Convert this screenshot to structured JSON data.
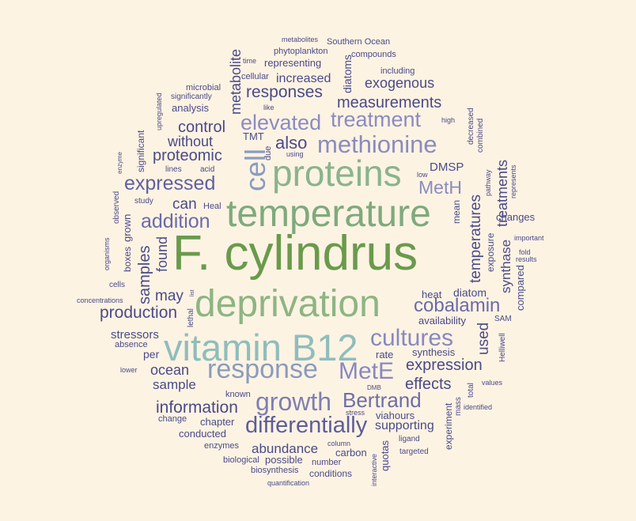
{
  "words": [
    {
      "id": "w1",
      "text": "F. cylindrus",
      "color": "#6a9a4c"
    },
    {
      "id": "w2",
      "text": "deprivation",
      "color": "#8db582"
    },
    {
      "id": "w3",
      "text": "temperature",
      "color": "#7faa7c"
    },
    {
      "id": "w4",
      "text": "vitamin B12",
      "color": "#8fbdbb"
    },
    {
      "id": "w5",
      "text": "proteins",
      "color": "#8ab48c"
    },
    {
      "id": "w6",
      "text": "methionine",
      "color": "#8a8cbd"
    },
    {
      "id": "w7",
      "text": "response",
      "color": "#8a9cbd"
    },
    {
      "id": "w8",
      "text": "growth",
      "color": "#7f7fb1"
    },
    {
      "id": "w9",
      "text": "cultures",
      "color": "#8888c0"
    },
    {
      "id": "w10",
      "text": "MetE",
      "color": "#8888c0"
    },
    {
      "id": "w11",
      "text": "Bertrand",
      "color": "#6e6ea8"
    },
    {
      "id": "w12",
      "text": "differentially",
      "color": "#5d5d99"
    },
    {
      "id": "w13",
      "text": "elevated",
      "color": "#8a8cc0"
    },
    {
      "id": "w14",
      "text": "treatment",
      "color": "#8a8cc0"
    },
    {
      "id": "w15",
      "text": "cell",
      "color": "#8a9cc0"
    },
    {
      "id": "w16",
      "text": "expressed",
      "color": "#6060a0"
    },
    {
      "id": "w17",
      "text": "addition",
      "color": "#6a6aaa"
    },
    {
      "id": "w18",
      "text": "cobalamin",
      "color": "#6a6aaa"
    },
    {
      "id": "w19",
      "text": "MetH",
      "color": "#8a8cc0"
    },
    {
      "id": "w20",
      "text": "information",
      "color": "#4a4a88"
    },
    {
      "id": "w21",
      "text": "production",
      "color": "#4a4a88"
    },
    {
      "id": "w22",
      "text": "expression",
      "color": "#4a4a88"
    },
    {
      "id": "w23",
      "text": "effects",
      "color": "#4a4a88"
    },
    {
      "id": "w24",
      "text": "measurements",
      "color": "#4a4a88"
    },
    {
      "id": "w25",
      "text": "responses",
      "color": "#4a4a88"
    },
    {
      "id": "w26",
      "text": "also",
      "color": "#4a4a88"
    },
    {
      "id": "w27",
      "text": "control",
      "color": "#4a4a88"
    },
    {
      "id": "w28",
      "text": "proteomic",
      "color": "#4a4a88"
    },
    {
      "id": "w29",
      "text": "without",
      "color": "#4a4a88"
    },
    {
      "id": "w30",
      "text": "can",
      "color": "#4a4a88"
    },
    {
      "id": "w31",
      "text": "may",
      "color": "#4a4a88"
    },
    {
      "id": "w32",
      "text": "ocean",
      "color": "#4a4a88"
    },
    {
      "id": "w33",
      "text": "sample",
      "color": "#4a4a88"
    },
    {
      "id": "w34",
      "text": "abundance",
      "color": "#4a4a88"
    },
    {
      "id": "w35",
      "text": "supporting",
      "color": "#4a4a88"
    },
    {
      "id": "w36",
      "text": "exogenous",
      "color": "#4a4a88"
    },
    {
      "id": "w37",
      "text": "increased",
      "color": "#4a4a88"
    },
    {
      "id": "w38",
      "text": "DMSP",
      "color": "#4a4a88"
    },
    {
      "id": "w39",
      "text": "temperatures",
      "color": "#4a4a88"
    },
    {
      "id": "w40",
      "text": "treatments",
      "color": "#4a4a88"
    },
    {
      "id": "w41",
      "text": "synthase",
      "color": "#4a4a88"
    },
    {
      "id": "w42",
      "text": "used",
      "color": "#4a4a88"
    },
    {
      "id": "w43",
      "text": "samples",
      "color": "#4a4a88"
    },
    {
      "id": "w44",
      "text": "found",
      "color": "#4a4a88"
    },
    {
      "id": "w45",
      "text": "metabolite",
      "color": "#4a4a88"
    },
    {
      "id": "w46",
      "text": "stressors",
      "color": "#4a4a88"
    },
    {
      "id": "w47",
      "text": "conducted",
      "color": "#4a4a88"
    },
    {
      "id": "w48",
      "text": "diatom",
      "color": "#4a4a88"
    },
    {
      "id": "w49",
      "text": "heat",
      "color": "#4a4a88"
    },
    {
      "id": "w50",
      "text": "availability",
      "color": "#4a4a88"
    },
    {
      "id": "w51",
      "text": "synthesis",
      "color": "#4a4a88"
    },
    {
      "id": "w52",
      "text": "rate",
      "color": "#4a4a88"
    },
    {
      "id": "w53",
      "text": "viahours",
      "color": "#4a4a88"
    },
    {
      "id": "w54",
      "text": "carbon",
      "color": "#4a4a88"
    },
    {
      "id": "w55",
      "text": "changes",
      "color": "#4a4a88"
    },
    {
      "id": "w56",
      "text": "compared",
      "color": "#4a4a88"
    },
    {
      "id": "w57",
      "text": "per",
      "color": "#4a4a88"
    },
    {
      "id": "w58",
      "text": "analysis",
      "color": "#4a4a88"
    },
    {
      "id": "w59",
      "text": "representing",
      "color": "#4a4a88"
    },
    {
      "id": "w60",
      "text": "diatoms",
      "color": "#4a4a88"
    },
    {
      "id": "w61",
      "text": "chapter",
      "color": "#4a4a88"
    },
    {
      "id": "w62",
      "text": "enzymes",
      "color": "#4a4a88"
    },
    {
      "id": "w63",
      "text": "possible",
      "color": "#4a4a88"
    },
    {
      "id": "w64",
      "text": "biosynthesis",
      "color": "#4a4a88"
    },
    {
      "id": "w65",
      "text": "conditions",
      "color": "#4a4a88"
    },
    {
      "id": "w66",
      "text": "grown",
      "color": "#4a4a88"
    },
    {
      "id": "w67",
      "text": "boxes",
      "color": "#4a4a88"
    },
    {
      "id": "w68",
      "text": "significant",
      "color": "#4a4a88"
    },
    {
      "id": "w69",
      "text": "quotas",
      "color": "#4a4a88"
    },
    {
      "id": "w70",
      "text": "experiment",
      "color": "#4a4a88"
    },
    {
      "id": "w71",
      "text": "mean",
      "color": "#4a4a88"
    },
    {
      "id": "w72",
      "text": "exposure",
      "color": "#4a4a88"
    },
    {
      "id": "w73",
      "text": "TMT",
      "color": "#4a4a88"
    },
    {
      "id": "w74",
      "text": "Heal",
      "color": "#4a4a88"
    },
    {
      "id": "w75",
      "text": "absence",
      "color": "#4a4a88"
    },
    {
      "id": "w76",
      "text": "known",
      "color": "#4a4a88"
    },
    {
      "id": "w77",
      "text": "change",
      "color": "#4a4a88"
    },
    {
      "id": "w78",
      "text": "biological",
      "color": "#4a4a88"
    },
    {
      "id": "w79",
      "text": "number",
      "color": "#4a4a88"
    },
    {
      "id": "w80",
      "text": "cellular",
      "color": "#4a4a88"
    },
    {
      "id": "w81",
      "text": "including",
      "color": "#4a4a88"
    },
    {
      "id": "w82",
      "text": "compounds",
      "color": "#4a4a88"
    },
    {
      "id": "w83",
      "text": "phytoplankton",
      "color": "#4a4a88"
    },
    {
      "id": "w84",
      "text": "Southern Ocean",
      "color": "#4a4a88"
    },
    {
      "id": "w85",
      "text": "metabolites",
      "color": "#4a4a88"
    },
    {
      "id": "w86",
      "text": "time",
      "color": "#4a4a88"
    },
    {
      "id": "w87",
      "text": "microbial",
      "color": "#4a4a88"
    },
    {
      "id": "w88",
      "text": "significantly",
      "color": "#4a4a88"
    },
    {
      "id": "w89",
      "text": "upregulated",
      "color": "#4a4a88"
    },
    {
      "id": "w90",
      "text": "like",
      "color": "#4a4a88"
    },
    {
      "id": "w91",
      "text": "using",
      "color": "#4a4a88"
    },
    {
      "id": "w92",
      "text": "due",
      "color": "#4a4a88"
    },
    {
      "id": "w93",
      "text": "lines",
      "color": "#4a4a88"
    },
    {
      "id": "w94",
      "text": "acid",
      "color": "#4a4a88"
    },
    {
      "id": "w95",
      "text": "enzyme",
      "color": "#4a4a88"
    },
    {
      "id": "w96",
      "text": "observed",
      "color": "#4a4a88"
    },
    {
      "id": "w97",
      "text": "study",
      "color": "#4a4a88"
    },
    {
      "id": "w98",
      "text": "organisms",
      "color": "#4a4a88"
    },
    {
      "id": "w99",
      "text": "cells",
      "color": "#4a4a88"
    },
    {
      "id": "w100",
      "text": "concentrations",
      "color": "#4a4a88"
    },
    {
      "id": "w101",
      "text": "lethal",
      "color": "#4a4a88"
    },
    {
      "id": "w102",
      "text": "list",
      "color": "#4a4a88"
    },
    {
      "id": "w103",
      "text": "lower",
      "color": "#4a4a88"
    },
    {
      "id": "w104",
      "text": "high",
      "color": "#4a4a88"
    },
    {
      "id": "w105",
      "text": "decreased",
      "color": "#4a4a88"
    },
    {
      "id": "w106",
      "text": "combined",
      "color": "#4a4a88"
    },
    {
      "id": "w107",
      "text": "low",
      "color": "#4a4a88"
    },
    {
      "id": "w108",
      "text": "pathway",
      "color": "#4a4a88"
    },
    {
      "id": "w109",
      "text": "represents",
      "color": "#4a4a88"
    },
    {
      "id": "w110",
      "text": "important",
      "color": "#4a4a88"
    },
    {
      "id": "w111",
      "text": "fold",
      "color": "#4a4a88"
    },
    {
      "id": "w112",
      "text": "results",
      "color": "#4a4a88"
    },
    {
      "id": "w113",
      "text": "SAM",
      "color": "#4a4a88"
    },
    {
      "id": "w114",
      "text": "Helliwell",
      "color": "#4a4a88"
    },
    {
      "id": "w115",
      "text": "values",
      "color": "#4a4a88"
    },
    {
      "id": "w116",
      "text": "total",
      "color": "#4a4a88"
    },
    {
      "id": "w117",
      "text": "mass",
      "color": "#4a4a88"
    },
    {
      "id": "w118",
      "text": "identified",
      "color": "#4a4a88"
    },
    {
      "id": "w119",
      "text": "DMB",
      "color": "#4a4a88"
    },
    {
      "id": "w120",
      "text": "stress",
      "color": "#4a4a88"
    },
    {
      "id": "w121",
      "text": "column",
      "color": "#4a4a88"
    },
    {
      "id": "w122",
      "text": "interactive",
      "color": "#4a4a88"
    },
    {
      "id": "w123",
      "text": "ligand",
      "color": "#4a4a88"
    },
    {
      "id": "w124",
      "text": "targeted",
      "color": "#4a4a88"
    },
    {
      "id": "w125",
      "text": "quantification",
      "color": "#4a4a88"
    }
  ]
}
